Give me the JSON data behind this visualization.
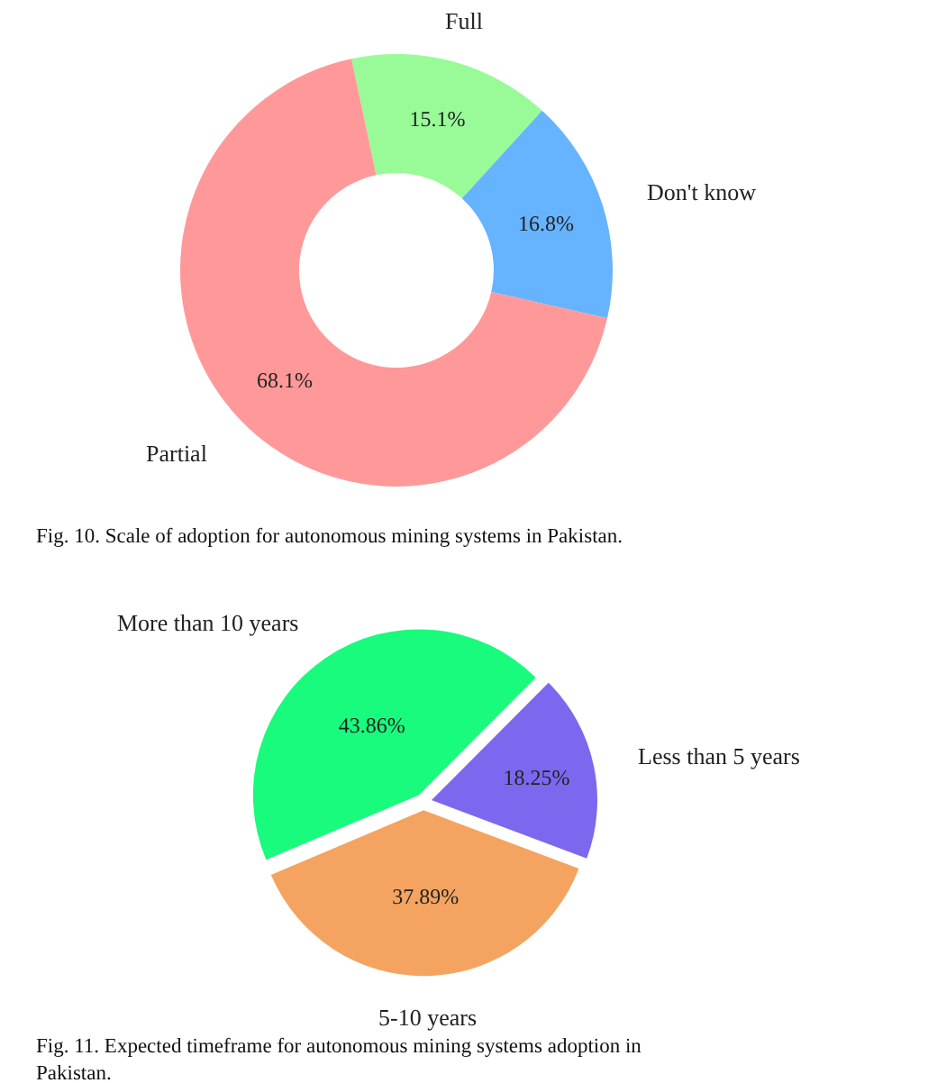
{
  "chart_data": [
    {
      "type": "donut",
      "categories": [
        "Full",
        "Don't know",
        "Partial"
      ],
      "values": [
        15.1,
        16.8,
        68.1
      ],
      "colors": [
        "#98fb98",
        "#66b3ff",
        "#ff9999"
      ],
      "value_labels": [
        "15.1%",
        "16.8%",
        "68.1%"
      ],
      "annotations": [
        "Fig. 10. Scale of adoption for autonomous mining systems in Pakistan."
      ],
      "legend": false
    },
    {
      "type": "pie",
      "categories": [
        "More than 10 years",
        "Less than 5 years",
        "5-10 years"
      ],
      "values": [
        43.86,
        18.25,
        37.89
      ],
      "colors": [
        "#19fb7c",
        "#7b68ee",
        "#f4a460"
      ],
      "value_labels": [
        "43.86%",
        "18.25%",
        "37.89%"
      ],
      "annotations": [
        "Fig. 11. Expected timeframe for autonomous mining systems adoption in Pakistan."
      ],
      "legend": false
    }
  ]
}
